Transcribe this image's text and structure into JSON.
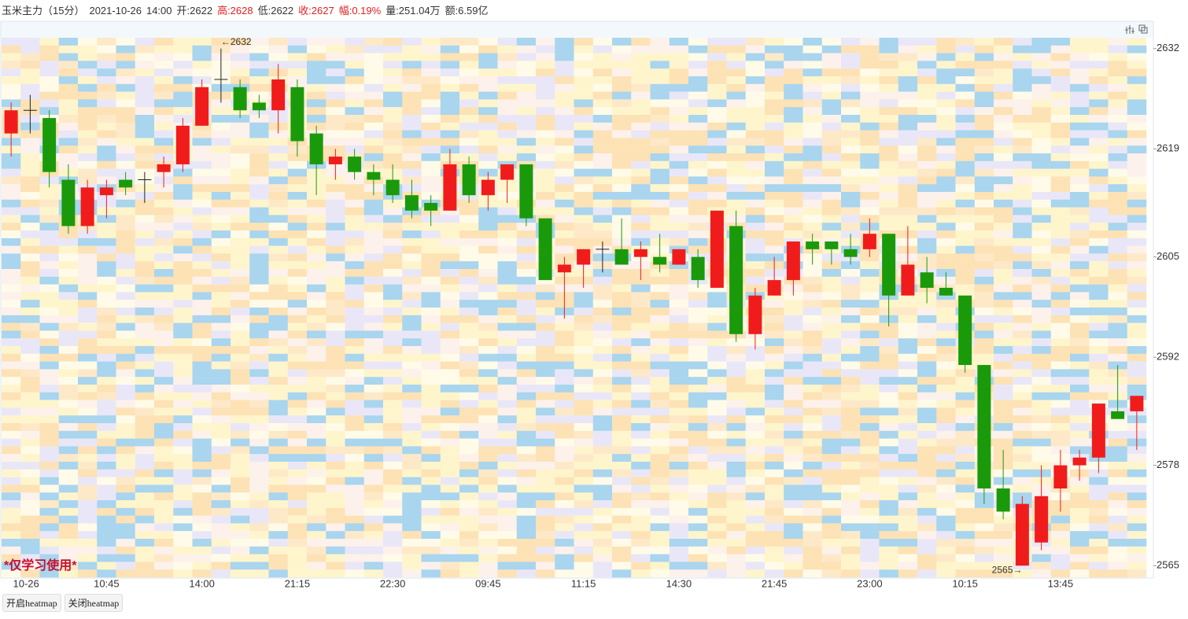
{
  "chart_data": {
    "type": "candlestick",
    "header": [
      {
        "text": "玉米主力（15分）",
        "color": "#333333"
      },
      {
        "text": "2021-10-26",
        "color": "#333333"
      },
      {
        "text": "14:00",
        "color": "#333333"
      },
      {
        "text": "开:2622",
        "color": "#333333"
      },
      {
        "text": "高:2628",
        "color": "#e02020"
      },
      {
        "text": "低:2622",
        "color": "#333333"
      },
      {
        "text": "收:2627",
        "color": "#e02020"
      },
      {
        "text": "幅:0.19%",
        "color": "#e02020"
      },
      {
        "text": "量:251.04万",
        "color": "#333333"
      },
      {
        "text": "额:6.59亿",
        "color": "#333333"
      }
    ],
    "categories": [
      "10-26",
      null,
      null,
      null,
      null,
      "10:45",
      null,
      null,
      null,
      null,
      "14:00",
      null,
      null,
      null,
      null,
      "21:15",
      null,
      null,
      null,
      null,
      "22:30",
      null,
      null,
      null,
      null,
      "09:45",
      null,
      null,
      null,
      null,
      "11:15",
      null,
      null,
      null,
      null,
      "14:30",
      null,
      null,
      null,
      null,
      "21:45",
      null,
      null,
      null,
      null,
      "23:00",
      null,
      null,
      null,
      null,
      "10:15",
      null,
      null,
      null,
      null,
      "13:45",
      null,
      null,
      null,
      null
    ],
    "open": [
      2621,
      2624,
      2623,
      2615,
      2609,
      2613,
      2615,
      2615,
      2616,
      2617,
      2622,
      2628,
      2627,
      2625,
      2624,
      2627,
      2621,
      2617,
      2618,
      2616,
      2615,
      2613,
      2612,
      2611,
      2617,
      2613,
      2615,
      2617,
      2610,
      2603,
      2604,
      2606,
      2606,
      2605,
      2605,
      2604,
      2605,
      2601,
      2609,
      2595,
      2600,
      2602,
      2607,
      2607,
      2606,
      2606,
      2608,
      2600,
      2603,
      2601,
      2600,
      2591,
      2575,
      2565,
      2568,
      2575,
      2578,
      2579,
      2585,
      2585
    ],
    "high": [
      2625,
      2626,
      2624,
      2617,
      2615,
      2615,
      2616,
      2616,
      2618,
      2623,
      2628,
      2632,
      2628,
      2626,
      2630,
      2628,
      2622,
      2619,
      2619,
      2617,
      2617,
      2615,
      2613,
      2619,
      2618,
      2616,
      2617,
      2617,
      2610,
      2605,
      2606,
      2607,
      2610,
      2607,
      2608,
      2606,
      2606,
      2611,
      2611,
      2601,
      2605,
      2607,
      2608,
      2607,
      2608,
      2610,
      2608,
      2609,
      2605,
      2603,
      2600,
      2591,
      2580,
      2574,
      2578,
      2580,
      2580,
      2586,
      2591,
      2587
    ],
    "low": [
      2618,
      2621,
      2614,
      2608,
      2608,
      2610,
      2613,
      2612,
      2614,
      2616,
      2622,
      2625,
      2623,
      2623,
      2621,
      2618,
      2613,
      2615,
      2615,
      2613,
      2612,
      2610,
      2609,
      2611,
      2612,
      2611,
      2612,
      2609,
      2602,
      2597,
      2601,
      2603,
      2604,
      2602,
      2603,
      2604,
      2601,
      2601,
      2594,
      2593,
      2600,
      2600,
      2604,
      2604,
      2604,
      2605,
      2596,
      2600,
      2599,
      2600,
      2590,
      2573,
      2571,
      2565,
      2567,
      2572,
      2576,
      2577,
      2584,
      2580
    ],
    "close": [
      2624,
      2624,
      2616,
      2609,
      2614,
      2614,
      2614,
      2615,
      2617,
      2622,
      2627,
      2628,
      2624,
      2624,
      2628,
      2620,
      2617,
      2618,
      2616,
      2615,
      2613,
      2611,
      2611,
      2617,
      2613,
      2615,
      2617,
      2610,
      2602,
      2604,
      2606,
      2606,
      2604,
      2606,
      2604,
      2606,
      2602,
      2611,
      2595,
      2600,
      2602,
      2607,
      2606,
      2606,
      2605,
      2608,
      2600,
      2604,
      2601,
      2600,
      2591,
      2575,
      2572,
      2573,
      2574,
      2578,
      2579,
      2586,
      2584,
      2587
    ],
    "up_color": "#f01c1c",
    "down_color": "#1a9a0a",
    "ylim": [
      2564.2,
      2633.4
    ],
    "yticks": [
      2565,
      2578,
      2592,
      2605,
      2619,
      2632
    ],
    "max_label": "←2632",
    "min_label": "2565→",
    "watermark": "*仅学习使用*",
    "buttons": [
      "开启heatmap",
      "关闭heatmap"
    ]
  }
}
